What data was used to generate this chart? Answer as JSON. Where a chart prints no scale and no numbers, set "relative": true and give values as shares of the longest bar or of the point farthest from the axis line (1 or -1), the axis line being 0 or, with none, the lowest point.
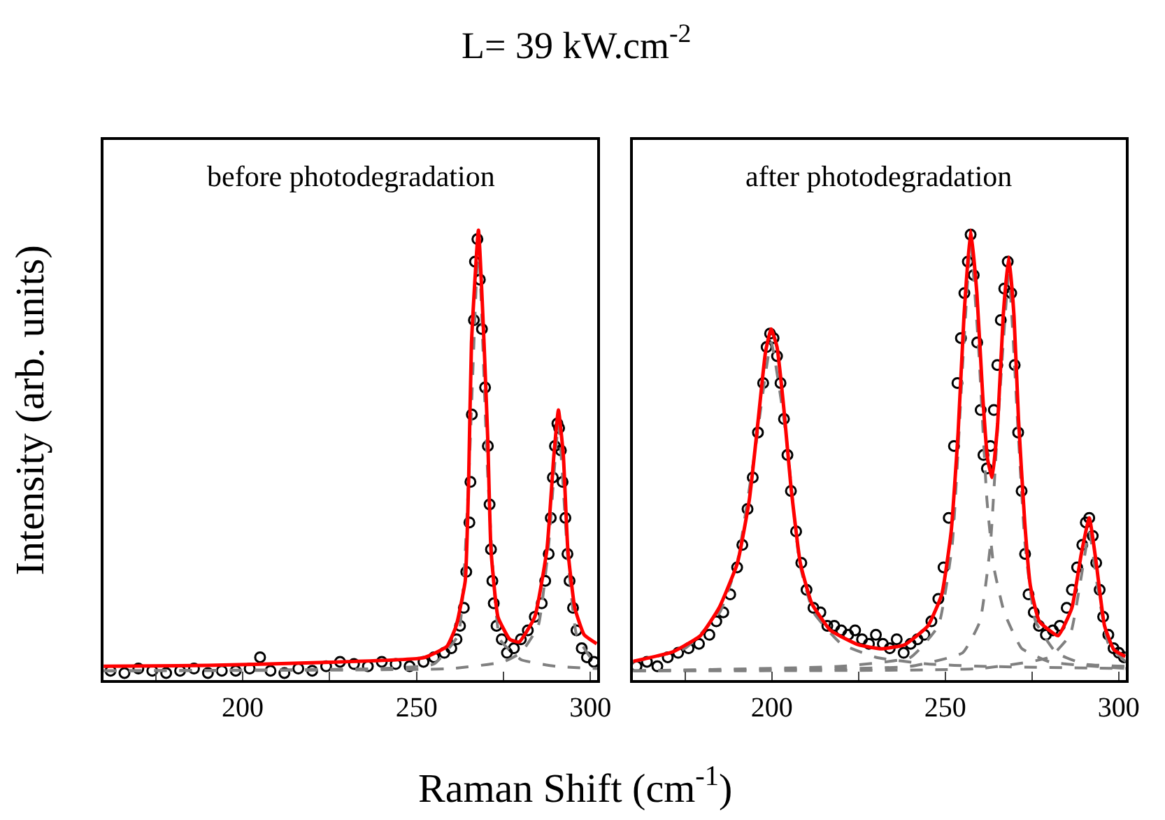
{
  "chart_data": [
    {
      "type": "scatter",
      "title": "L= 39 kW.cm$^{-2}$",
      "xlabel": "Raman Shift (cm$^{-1}$)",
      "ylabel": "Intensity (arb. units)",
      "relative": true,
      "xlim": [
        160,
        302
      ],
      "xticks": [
        {
          "value": 175,
          "label": null
        },
        200,
        {
          "value": 225,
          "label": null
        },
        250,
        {
          "value": 275,
          "label": null
        },
        300
      ],
      "annotations": [
        "before photodegradation"
      ],
      "series": [
        {
          "marker": "circle",
          "color": "#000000",
          "x": [
            162,
            166,
            170,
            174,
            178,
            182,
            186,
            190,
            194,
            198,
            202,
            205,
            208,
            212,
            216,
            220,
            224,
            228,
            232,
            236,
            240,
            244,
            248,
            252,
            255,
            258,
            260,
            261.5,
            262.5,
            263.6,
            264.3,
            265.2,
            265.5,
            265.9,
            266.5,
            266.8,
            267.5,
            268.2,
            268.8,
            269.7,
            270.5,
            271,
            271.4,
            271.8,
            272.2,
            273,
            274.5,
            276,
            278,
            280,
            282,
            284,
            286,
            287,
            288,
            288.6,
            289.2,
            289.8,
            290.5,
            291,
            291.5,
            292,
            292.8,
            293.4,
            294,
            295,
            296,
            297.5,
            299,
            301
          ],
          "values": [
            0.02,
            0.015,
            0.025,
            0.02,
            0.015,
            0.02,
            0.025,
            0.015,
            0.02,
            0.02,
            0.025,
            0.05,
            0.02,
            0.015,
            0.025,
            0.02,
            0.03,
            0.04,
            0.035,
            0.03,
            0.04,
            0.035,
            0.03,
            0.04,
            0.05,
            0.06,
            0.07,
            0.09,
            0.12,
            0.16,
            0.24,
            0.35,
            0.44,
            0.59,
            0.8,
            0.93,
            0.98,
            0.89,
            0.78,
            0.65,
            0.52,
            0.39,
            0.29,
            0.22,
            0.17,
            0.12,
            0.09,
            0.06,
            0.07,
            0.09,
            0.11,
            0.14,
            0.17,
            0.22,
            0.28,
            0.36,
            0.45,
            0.52,
            0.57,
            0.56,
            0.51,
            0.44,
            0.36,
            0.28,
            0.22,
            0.16,
            0.11,
            0.07,
            0.05,
            0.04
          ]
        },
        {
          "type": "line",
          "line_style": "dashed",
          "color": "#808080",
          "x": [
            160,
            240,
            255,
            262,
            265,
            267.8,
            270.5,
            274,
            280,
            290,
            302
          ],
          "values": [
            0.02,
            0.025,
            0.035,
            0.1,
            0.45,
            0.97,
            0.45,
            0.09,
            0.045,
            0.03,
            0.025
          ]
        },
        {
          "type": "line",
          "line_style": "dashed",
          "color": "#808080",
          "x": [
            160,
            260,
            275,
            280,
            285,
            288,
            290.8,
            293.5,
            296,
            300,
            302
          ],
          "values": [
            0.02,
            0.025,
            0.04,
            0.06,
            0.12,
            0.3,
            0.57,
            0.27,
            0.1,
            0.05,
            0.04
          ]
        },
        {
          "type": "line",
          "line_style": "solid",
          "color": "#ff0000",
          "x": [
            160,
            190,
            225.2,
            252,
            258.7,
            261.4,
            264,
            265,
            265.8,
            267.8,
            269.4,
            270.5,
            271.4,
            273.4,
            276.8,
            279.5,
            284,
            287.5,
            289.5,
            290.8,
            292.2,
            293.5,
            295.5,
            298.2,
            301.8
          ],
          "values": [
            0.03,
            0.032,
            0.039,
            0.049,
            0.074,
            0.12,
            0.22,
            0.45,
            0.75,
            1.0,
            0.75,
            0.53,
            0.29,
            0.14,
            0.09,
            0.084,
            0.14,
            0.29,
            0.5,
            0.6,
            0.5,
            0.29,
            0.16,
            0.1,
            0.08
          ]
        }
      ]
    },
    {
      "type": "scatter",
      "relative": true,
      "xlim": [
        160,
        302
      ],
      "xticks": [
        {
          "value": 175,
          "label": null
        },
        200,
        {
          "value": 225,
          "label": null
        },
        250,
        {
          "value": 275,
          "label": null
        },
        300
      ],
      "annotations": [
        "after photodegradation"
      ],
      "series": [
        {
          "marker": "circle",
          "color": "#000000",
          "x": [
            161,
            164,
            167,
            170,
            173,
            176,
            179,
            182,
            184,
            186,
            188,
            190,
            191.5,
            193,
            194.5,
            196,
            197.5,
            198.5,
            199.5,
            200.5,
            201.5,
            202.5,
            203.5,
            204.5,
            205.5,
            207,
            208.5,
            210,
            212,
            214,
            216,
            218,
            220,
            222,
            224,
            226,
            228,
            230,
            232,
            234,
            236,
            238,
            240,
            242,
            244,
            246,
            248,
            249.5,
            251,
            252.5,
            253.5,
            254.5,
            255.5,
            256.5,
            257.3,
            258.2,
            259.2,
            260.2,
            261,
            262,
            263,
            264,
            265,
            266,
            267,
            268,
            269,
            270,
            271,
            272,
            273,
            274,
            275.5,
            277,
            279,
            281,
            283,
            285,
            286.5,
            288,
            289.5,
            290.5,
            291.5,
            292.5,
            293.5,
            294.5,
            295.5,
            297,
            298.5,
            300,
            301.5
          ],
          "values": [
            0.03,
            0.04,
            0.03,
            0.05,
            0.06,
            0.07,
            0.08,
            0.1,
            0.13,
            0.15,
            0.19,
            0.25,
            0.3,
            0.38,
            0.45,
            0.55,
            0.66,
            0.74,
            0.77,
            0.76,
            0.72,
            0.66,
            0.58,
            0.5,
            0.42,
            0.33,
            0.26,
            0.2,
            0.16,
            0.15,
            0.12,
            0.12,
            0.11,
            0.1,
            0.11,
            0.09,
            0.08,
            0.1,
            0.08,
            0.07,
            0.09,
            0.06,
            0.08,
            0.09,
            0.1,
            0.13,
            0.18,
            0.25,
            0.36,
            0.52,
            0.66,
            0.76,
            0.86,
            0.93,
            0.99,
            0.9,
            0.75,
            0.6,
            0.5,
            0.47,
            0.52,
            0.6,
            0.7,
            0.8,
            0.87,
            0.93,
            0.86,
            0.7,
            0.55,
            0.42,
            0.28,
            0.19,
            0.15,
            0.12,
            0.1,
            0.11,
            0.12,
            0.16,
            0.2,
            0.25,
            0.3,
            0.35,
            0.36,
            0.32,
            0.26,
            0.2,
            0.14,
            0.1,
            0.07,
            0.06,
            0.05
          ]
        },
        {
          "type": "line",
          "line_style": "dashed",
          "color": "#808080",
          "x": [
            160,
            175,
            185,
            190,
            195,
            199.8,
            204,
            208,
            212,
            220,
            230,
            245,
            260,
            302
          ],
          "values": [
            0.04,
            0.07,
            0.15,
            0.26,
            0.5,
            0.75,
            0.55,
            0.26,
            0.15,
            0.08,
            0.05,
            0.035,
            0.03,
            0.025
          ]
        },
        {
          "type": "line",
          "line_style": "dashed",
          "color": "#808080",
          "x": [
            160,
            220,
            240,
            248,
            252,
            255,
            257.3,
            259.5,
            262,
            264,
            267,
            272,
            280,
            302
          ],
          "values": [
            0.02,
            0.03,
            0.05,
            0.12,
            0.3,
            0.7,
            0.97,
            0.75,
            0.4,
            0.25,
            0.15,
            0.07,
            0.04,
            0.025
          ]
        },
        {
          "type": "line",
          "line_style": "dashed",
          "color": "#808080",
          "x": [
            160,
            240,
            255,
            260,
            263,
            265,
            268.3,
            271,
            273,
            276,
            282,
            290,
            302
          ],
          "values": [
            0.02,
            0.03,
            0.06,
            0.13,
            0.3,
            0.55,
            0.9,
            0.55,
            0.3,
            0.13,
            0.06,
            0.035,
            0.03
          ]
        },
        {
          "type": "line",
          "line_style": "dashed",
          "color": "#808080",
          "x": [
            160,
            260,
            280,
            286,
            289,
            291.5,
            294,
            297,
            302
          ],
          "values": [
            0.02,
            0.025,
            0.05,
            0.1,
            0.22,
            0.33,
            0.2,
            0.08,
            0.04
          ]
        },
        {
          "type": "line",
          "line_style": "solid",
          "color": "#ff0000",
          "x": [
            160,
            171.4,
            179.4,
            184.8,
            190.1,
            193.5,
            196.1,
            198.2,
            199.8,
            201.5,
            203.5,
            205.5,
            208.2,
            211.5,
            216.9,
            224.9,
            231.6,
            238.3,
            245,
            249,
            251.7,
            253.7,
            255.4,
            257.3,
            259.1,
            260.8,
            262.2,
            263.5,
            265.1,
            266.7,
            268.3,
            269.8,
            271.1,
            272.9,
            274.5,
            277.1,
            282.5,
            286.5,
            289.2,
            291.5,
            293.5,
            295.9,
            298.6,
            301.9
          ],
          "values": [
            0.041,
            0.062,
            0.098,
            0.16,
            0.26,
            0.4,
            0.58,
            0.73,
            0.78,
            0.74,
            0.6,
            0.43,
            0.26,
            0.17,
            0.11,
            0.078,
            0.069,
            0.078,
            0.12,
            0.19,
            0.33,
            0.55,
            0.81,
            1.0,
            0.86,
            0.63,
            0.49,
            0.45,
            0.57,
            0.81,
            0.94,
            0.81,
            0.58,
            0.35,
            0.21,
            0.13,
            0.098,
            0.16,
            0.28,
            0.36,
            0.26,
            0.12,
            0.067,
            0.052
          ]
        }
      ]
    }
  ]
}
